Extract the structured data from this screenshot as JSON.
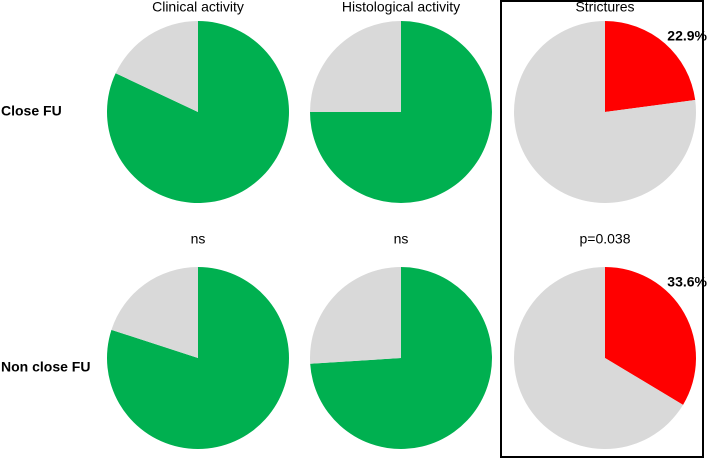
{
  "column_titles": [
    "Clinical activity",
    "Histological activity",
    "Strictures"
  ],
  "row_labels": [
    "Close FU",
    "Non close FU"
  ],
  "comparisons": [
    "ns",
    "ns",
    "p=0.038"
  ],
  "chart_data": [
    {
      "type": "pie",
      "values": [
        82,
        18
      ],
      "colors": [
        "#00b050",
        "#d9d9d9"
      ]
    },
    {
      "type": "pie",
      "values": [
        75,
        25
      ],
      "colors": [
        "#00b050",
        "#d9d9d9"
      ]
    },
    {
      "type": "pie",
      "values": [
        22.9,
        77.1
      ],
      "value_labels": [
        "22.9%",
        null
      ],
      "colors": [
        "#ff0000",
        "#d9d9d9"
      ]
    },
    {
      "type": "pie",
      "values": [
        80,
        20
      ],
      "colors": [
        "#00b050",
        "#d9d9d9"
      ]
    },
    {
      "type": "pie",
      "values": [
        74,
        26
      ],
      "colors": [
        "#00b050",
        "#d9d9d9"
      ]
    },
    {
      "type": "pie",
      "values": [
        33.6,
        66.4
      ],
      "value_labels": [
        "33.6%",
        null
      ],
      "colors": [
        "#ff0000",
        "#d9d9d9"
      ]
    }
  ]
}
